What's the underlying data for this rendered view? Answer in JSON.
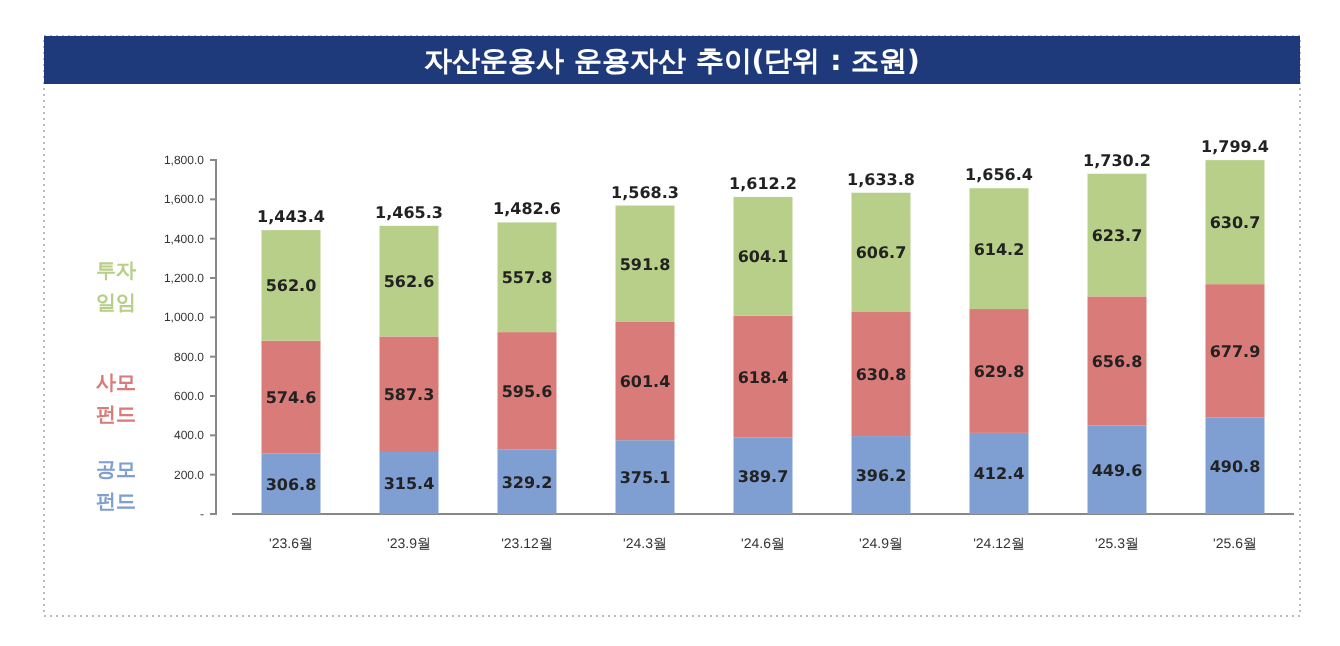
{
  "chart_data": {
    "type": "bar",
    "title": "자산운용사 운용자산 추이(단위 : 조원)",
    "categories": [
      "'23.6월",
      "'23.9월",
      "'23.12월",
      "'24.3월",
      "'24.6월",
      "'24.9월",
      "'24.12월",
      "'25.3월",
      "'25.6월"
    ],
    "series": [
      {
        "name": "공모 펀드",
        "color": "#7f9fd3",
        "values": [
          306.8,
          315.4,
          329.2,
          375.1,
          389.7,
          396.2,
          412.4,
          449.6,
          490.8
        ],
        "value_labels": [
          "306.8",
          "315.4",
          "329.2",
          "375.1",
          "389.7",
          "396.2",
          "412.4",
          "449.6",
          "490.8"
        ]
      },
      {
        "name": "사모 펀드",
        "color": "#d97b78",
        "values": [
          574.6,
          587.3,
          595.6,
          601.4,
          618.4,
          630.8,
          629.8,
          656.8,
          677.9
        ],
        "value_labels": [
          "574.6",
          "587.3",
          "595.6",
          "601.4",
          "618.4",
          "630.8",
          "629.8",
          "656.8",
          "677.9"
        ]
      },
      {
        "name": "투자 일임",
        "color": "#b7cf88",
        "values": [
          562,
          562.6,
          557.8,
          591.8,
          604.1,
          606.7,
          614.2,
          623.7,
          630.7
        ],
        "value_labels": [
          "562.0",
          "562.6",
          "557.8",
          "591.8",
          "604.1",
          "606.7",
          "614.2",
          "623.7",
          "630.7"
        ]
      }
    ],
    "stacked": true,
    "totals": [
      "1,443.4",
      "1,465.3",
      "1,482.6",
      "1,568.3",
      "1,612.2",
      "1,633.8",
      "1,656.4",
      "1,730.2",
      "1,799.4"
    ],
    "ylim": [
      0,
      1800
    ],
    "yticks": [
      {
        "value": 0,
        "label": "-"
      },
      {
        "value": 200,
        "label": "200.0"
      },
      {
        "value": 400,
        "label": "400.0"
      },
      {
        "value": 600,
        "label": "600.0"
      },
      {
        "value": 800,
        "label": "800.0"
      },
      {
        "value": 1000,
        "label": "1,000.0"
      },
      {
        "value": 1200,
        "label": "1,200.0"
      },
      {
        "value": 1400,
        "label": "1,400.0"
      },
      {
        "value": 1600,
        "label": "1,600.0"
      },
      {
        "value": 1800,
        "label": "1,800.0"
      }
    ],
    "grid": false,
    "legend": "left"
  }
}
